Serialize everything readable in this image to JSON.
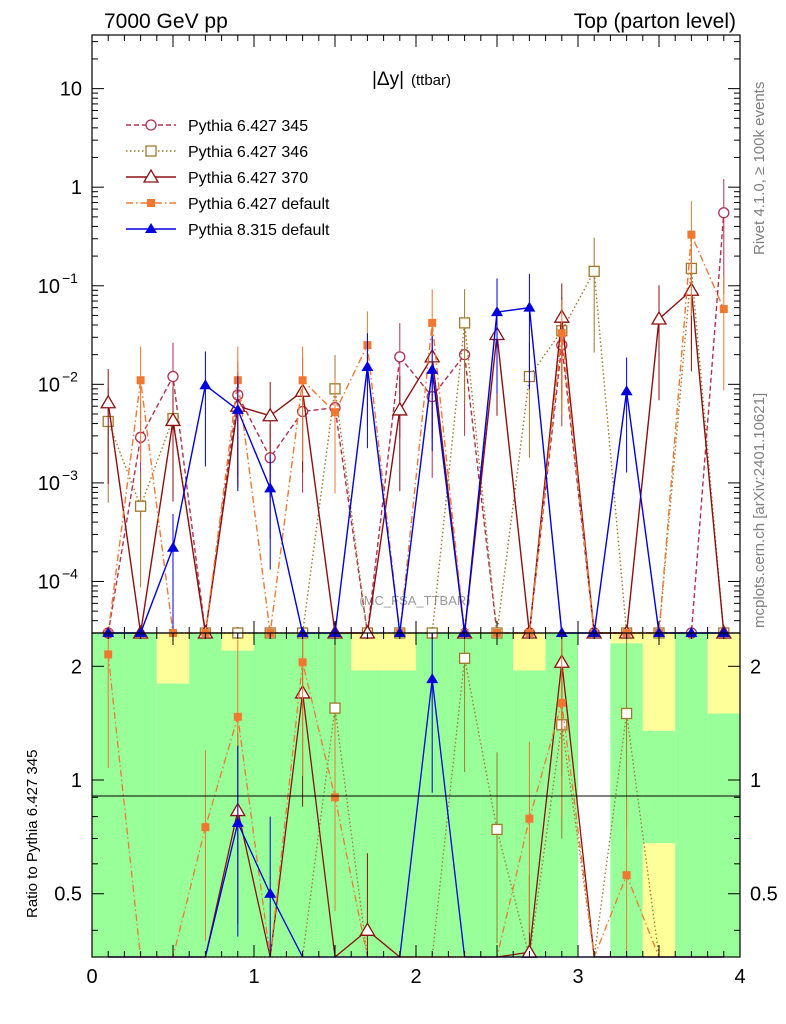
{
  "header": {
    "left": "7000 GeV pp",
    "right": "Top (parton level)"
  },
  "side_labels": {
    "rivet": "Rivet 4.1.0, ≥ 100k events",
    "mcplots": "mcplots.cern.ch [arXiv:2401.10621]"
  },
  "watermark": "(MC_FSA_TTBAR)",
  "colors": {
    "p345": "#b03050",
    "p346": "#a0782a",
    "p370": "#8b1010",
    "p6def": "#f07830",
    "p8def": "#0000dd",
    "band_green": "#99ff99",
    "band_yellow": "#ffff99"
  },
  "chart_data": [
    {
      "type": "line",
      "title": "|Δy| (ttbar)",
      "title_main": "|Δy|",
      "title_sub": "(ttbar)",
      "yscale": "log",
      "xlim": [
        0,
        4
      ],
      "ylim": [
        3e-05,
        35
      ],
      "ytick_labels": {
        "major_1": "10",
        "major_0": "1",
        "major_m1": "10",
        "major_m1_exp": "−1",
        "major_m2": "10",
        "major_m2_exp": "−2",
        "major_m3": "10",
        "major_m3_exp": "−3",
        "major_m4": "10",
        "major_m4_exp": "−4"
      },
      "x": [
        0.1,
        0.3,
        0.5,
        0.7,
        0.9,
        1.1,
        1.3,
        1.5,
        1.7,
        1.9,
        2.1,
        2.3,
        2.5,
        2.7,
        2.9,
        3.1,
        3.3,
        3.5,
        3.7,
        3.9
      ],
      "legend_position": "top-left",
      "series": [
        {
          "name": "Pythia 6.427 345",
          "key": "p345",
          "style": "dashed",
          "marker": "circle-open",
          "values": [
            0,
            0.0029,
            0.012,
            0,
            0.0078,
            0.0018,
            0.0053,
            0.0058,
            0,
            0.019,
            0.0075,
            0.02,
            0,
            0,
            0.025,
            0,
            0,
            0,
            0,
            0.55
          ]
        },
        {
          "name": "Pythia 6.427 346",
          "key": "p346",
          "style": "dotted",
          "marker": "square-open",
          "values": [
            0.0042,
            0.00058,
            0.0045,
            0,
            0,
            0,
            0,
            0.009,
            0,
            0,
            0,
            0.042,
            0,
            0.012,
            0.035,
            0.14,
            0,
            0,
            0.15,
            0
          ]
        },
        {
          "name": "Pythia 6.427 370",
          "key": "p370",
          "style": "solid",
          "marker": "triangle-open",
          "values": [
            0.0065,
            0,
            0.0043,
            0,
            0.006,
            0.0048,
            0.0085,
            0,
            0,
            0.0055,
            0.019,
            0,
            0.032,
            0,
            0.048,
            0,
            0,
            0.046,
            0.09,
            0
          ]
        },
        {
          "name": "Pythia 6.427 default",
          "key": "p6def",
          "style": "dashdot",
          "marker": "square-filled",
          "values": [
            0,
            0.011,
            0,
            0,
            0.011,
            0,
            0.011,
            0.0052,
            0.025,
            0,
            0.042,
            0,
            0,
            0,
            0.033,
            0,
            0,
            0,
            0.33,
            0.058
          ]
        },
        {
          "name": "Pythia 8.315 default",
          "key": "p8def",
          "style": "solid",
          "marker": "triangle-filled",
          "values": [
            0,
            0,
            0.00022,
            0.0098,
            0.0055,
            0.00088,
            0,
            0,
            0.015,
            0,
            0.014,
            0,
            0.054,
            0.06,
            0,
            0,
            0.0085,
            0,
            0,
            0
          ]
        }
      ]
    },
    {
      "type": "line",
      "ylabel": "Ratio to Pythia 6.427 345",
      "yscale": "log",
      "xlim": [
        0,
        4
      ],
      "ylim": [
        0.34,
        2.45
      ],
      "x_tick_labels": [
        "0",
        "1",
        "2",
        "3",
        "4"
      ],
      "y_tick_labels": [
        "0.5",
        "1",
        "2"
      ],
      "reference_line": 1,
      "bands": {
        "green_upper": [
          2.45,
          2.45,
          2.45,
          2.45,
          2.45,
          2.45,
          2.45,
          2.45,
          2.45,
          2.45,
          2.45,
          2.45,
          2.45,
          2.45,
          2.45,
          1.0,
          2.45,
          2.45,
          2.45,
          2.45
        ],
        "green_lower": [
          0.34,
          0.34,
          0.34,
          0.34,
          0.34,
          0.34,
          0.34,
          0.34,
          0.34,
          0.34,
          0.34,
          0.34,
          0.34,
          0.34,
          0.34,
          1.0,
          0.34,
          0.34,
          0.34,
          0.34
        ],
        "yellow_upper": [
          2.45,
          2.45,
          2.45,
          2.45,
          2.45,
          2.45,
          2.45,
          2.45,
          2.45,
          2.45,
          2.45,
          2.45,
          2.45,
          2.45,
          2.45,
          1.0,
          2.45,
          2.45,
          2.45,
          2.45
        ],
        "yellow_lower": [
          0.34,
          0.34,
          0.34,
          0.34,
          0.34,
          0.34,
          0.34,
          0.34,
          0.34,
          0.34,
          0.34,
          0.34,
          0.34,
          0.34,
          0.34,
          1.0,
          0.34,
          0.34,
          0.34,
          0.34
        ],
        "green_top": [
          2.45,
          2.45,
          1.8,
          2.45,
          2.2,
          2.45,
          2.45,
          2.45,
          1.95,
          1.95,
          2.45,
          2.45,
          2.45,
          1.95,
          2.45,
          1.0,
          2.3,
          1.35,
          2.45,
          1.5
        ],
        "green_bottom": [
          0.34,
          0.34,
          0.34,
          0.34,
          0.34,
          0.34,
          0.34,
          0.34,
          0.34,
          0.34,
          0.34,
          0.34,
          0.34,
          0.34,
          0.34,
          1.0,
          0.34,
          0.68,
          0.34,
          0.34
        ],
        "yellow_top": [
          2.45,
          2.45,
          2.45,
          2.45,
          2.45,
          2.45,
          2.45,
          2.45,
          2.45,
          2.45,
          2.45,
          2.45,
          2.45,
          2.45,
          2.45,
          1.0,
          2.45,
          2.45,
          2.45,
          2.45
        ],
        "yellow_bottom": [
          0.34,
          0.34,
          0.34,
          0.34,
          0.34,
          0.34,
          0.34,
          0.34,
          0.34,
          0.34,
          0.34,
          0.34,
          0.34,
          0.34,
          0.34,
          1.0,
          0.34,
          0.34,
          0.34,
          0.34
        ]
      },
      "series": [
        {
          "name": "Pythia 6.427 346",
          "key": "p346",
          "marker": "square-open",
          "values": [
            null,
            null,
            null,
            null,
            null,
            null,
            null,
            1.55,
            null,
            null,
            null,
            2.1,
            0.74,
            null,
            1.4,
            null,
            1.5,
            null,
            null,
            null
          ]
        },
        {
          "name": "Pythia 6.427 370",
          "key": "p370",
          "marker": "triangle-open",
          "values": [
            null,
            null,
            null,
            null,
            0.83,
            null,
            1.7,
            null,
            0.4,
            null,
            null,
            null,
            null,
            0.35,
            2.05,
            null,
            null,
            null,
            null,
            null
          ]
        },
        {
          "name": "Pythia 6.427 default",
          "key": "p6def",
          "marker": "square-filled",
          "values": [
            2.15,
            null,
            null,
            0.75,
            1.47,
            null,
            2.05,
            0.9,
            null,
            null,
            null,
            null,
            null,
            0.79,
            1.6,
            null,
            0.56,
            null,
            null,
            null
          ]
        },
        {
          "name": "Pythia 8.315 default",
          "key": "p8def",
          "marker": "triangle-filled",
          "values": [
            null,
            null,
            null,
            null,
            0.77,
            0.5,
            null,
            null,
            null,
            null,
            1.85,
            null,
            null,
            null,
            null,
            null,
            null,
            null,
            null,
            null
          ]
        }
      ]
    }
  ]
}
